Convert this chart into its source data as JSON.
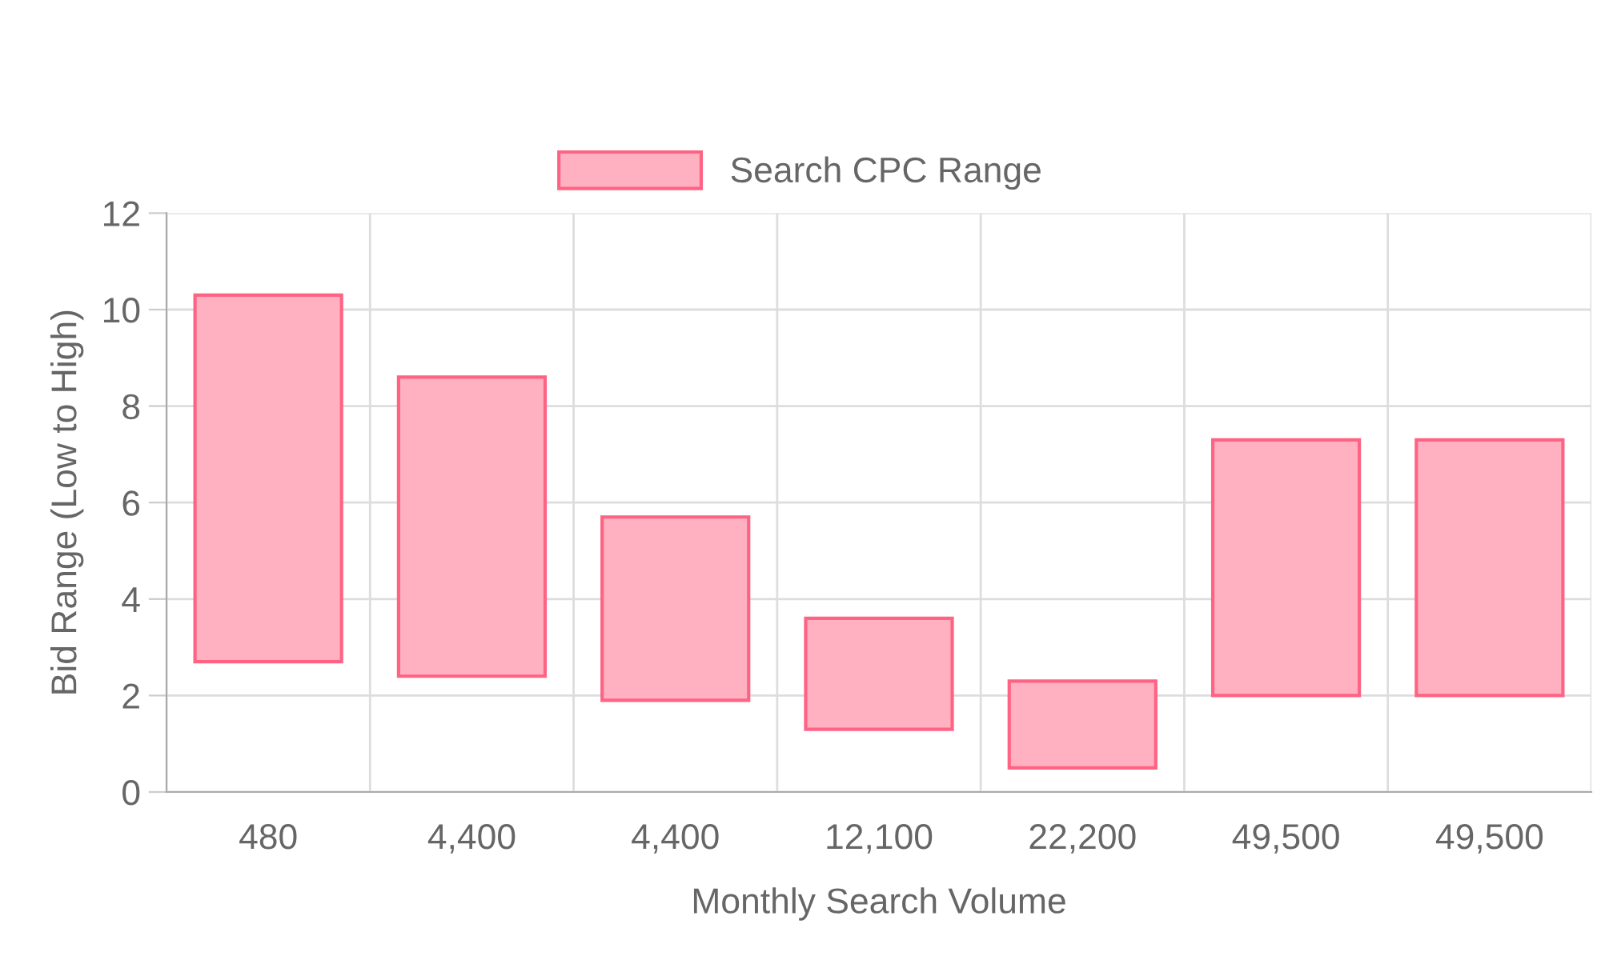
{
  "chart_data": {
    "type": "bar",
    "xlabel": "Monthly Search Volume",
    "ylabel": "Bid Range (Low to High)",
    "categories": [
      "480",
      "4,400",
      "4,400",
      "12,100",
      "22,200",
      "49,500",
      "49,500"
    ],
    "series": [
      {
        "name": "Search CPC Range",
        "color": "#ffb1c1",
        "values": [
          7.6,
          6.2,
          3.8,
          2.3,
          1.8,
          5.3,
          5.3
        ],
        "base": [
          2.7,
          2.4,
          1.9,
          1.3,
          0.5,
          2.0,
          2.0
        ]
      }
    ],
    "ylim": [
      0,
      12
    ],
    "yticks": [
      0,
      2,
      4,
      6,
      8,
      10,
      12
    ],
    "grid": true,
    "legend": "top"
  }
}
